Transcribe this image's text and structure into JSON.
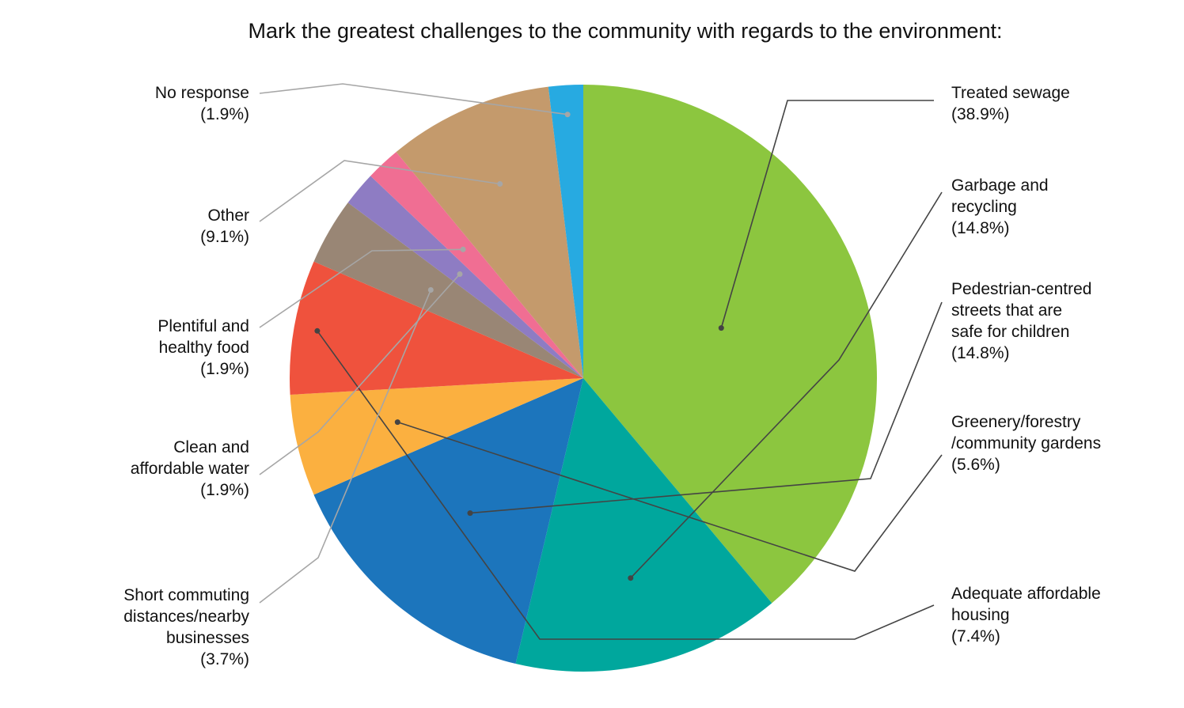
{
  "chart_data": {
    "type": "pie",
    "title": "Mark the greatest challenges to the community with regards to the environment:",
    "slices": [
      {
        "label": [
          "Treated sewage"
        ],
        "percent_label": "(38.9%)",
        "value": 38.9,
        "color": "#8cc63f"
      },
      {
        "label": [
          "Garbage and",
          "recycling"
        ],
        "percent_label": "(14.8%)",
        "value": 14.8,
        "color": "#00a79d"
      },
      {
        "label": [
          "Pedestrian-centred",
          "streets that are",
          "safe for children"
        ],
        "percent_label": "(14.8%)",
        "value": 14.8,
        "color": "#1c75bc"
      },
      {
        "label": [
          "Greenery/forestry",
          "/community gardens"
        ],
        "percent_label": "(5.6%)",
        "value": 5.6,
        "color": "#fbb040"
      },
      {
        "label": [
          "Adequate affordable",
          "housing"
        ],
        "percent_label": "(7.4%)",
        "value": 7.4,
        "color": "#ef523d"
      },
      {
        "label": [
          "Short commuting",
          "distances/nearby",
          "businesses"
        ],
        "percent_label": "(3.7%)",
        "value": 3.7,
        "color": "#998675"
      },
      {
        "label": [
          "Clean and",
          "affordable water"
        ],
        "percent_label": "(1.9%)",
        "value": 1.9,
        "color": "#8e7cc3"
      },
      {
        "label": [
          "Plentiful and",
          "healthy food"
        ],
        "percent_label": "(1.9%)",
        "value": 1.9,
        "color": "#f06e93"
      },
      {
        "label": [
          "Other"
        ],
        "percent_label": "(9.1%)",
        "value": 9.1,
        "color": "#c49a6c"
      },
      {
        "label": [
          "No response"
        ],
        "percent_label": "(1.9%)",
        "value": 1.9,
        "color": "#27aae1"
      }
    ],
    "leader_line_colors": {
      "right": "#444444",
      "left": "#a6a6a6"
    }
  }
}
